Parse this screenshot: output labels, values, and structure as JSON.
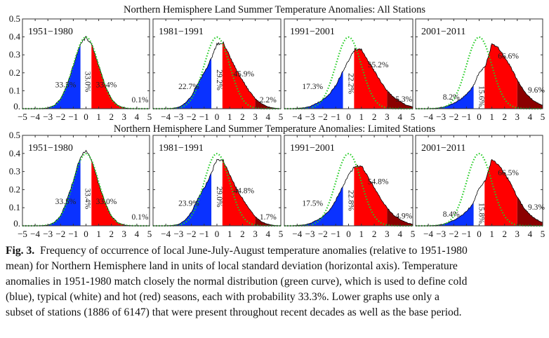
{
  "chart_data": [
    {
      "type": "area",
      "title": "Northern Hemisphere Land Summer Temperature Anomalies: All Stations",
      "xlim": [
        -5,
        5
      ],
      "ylim": [
        0,
        0.5
      ],
      "xticks": [
        "−5",
        "−4",
        "−3",
        "−2",
        "−1",
        "0",
        "1",
        "2",
        "3",
        "4",
        "5"
      ],
      "yticks": [
        "0.5",
        "0.4",
        "0.3",
        "0.2",
        "0.1",
        "0."
      ],
      "x": [
        -5,
        -4.5,
        -4,
        -3.5,
        -3,
        -2.5,
        -2,
        -1.5,
        -1,
        -0.5,
        0,
        0.5,
        1,
        1.5,
        2,
        2.5,
        3,
        3.5,
        4,
        4.5,
        5
      ],
      "reference_curve": "normal distribution (green dotted)",
      "colors": {
        "cold": "#0a32ff",
        "typical": "#ffffff",
        "hot": "#ff0000",
        "extreme": "#8b0000",
        "normal": "#22cc22"
      },
      "panels": [
        {
          "period": "1951−1980",
          "cold": "33.5%",
          "typical": "33.0%",
          "hot": "33.4%",
          "extreme": "0.1%",
          "density": [
            0,
            0,
            0,
            0.001,
            0.004,
            0.018,
            0.054,
            0.13,
            0.24,
            0.35,
            0.4,
            0.35,
            0.24,
            0.13,
            0.054,
            0.018,
            0.004,
            0.001,
            0,
            0,
            0
          ]
        },
        {
          "period": "1981−1991",
          "cold": "22.7%",
          "typical": "29.2%",
          "hot": "45.9%",
          "extreme": "2.2%",
          "density": [
            0,
            0,
            0,
            0.002,
            0.008,
            0.03,
            0.07,
            0.14,
            0.2,
            0.27,
            0.36,
            0.37,
            0.29,
            0.22,
            0.16,
            0.1,
            0.055,
            0.027,
            0.01,
            0.003,
            0
          ]
        },
        {
          "period": "1991−2001",
          "cold": "17.3%",
          "typical": "22.2%",
          "hot": "55.2%",
          "extreme": "5.3%",
          "density": [
            0,
            0,
            0.002,
            0.005,
            0.012,
            0.03,
            0.05,
            0.08,
            0.13,
            0.2,
            0.27,
            0.33,
            0.33,
            0.27,
            0.21,
            0.15,
            0.1,
            0.065,
            0.04,
            0.02,
            0.01
          ]
        },
        {
          "period": "2001−2011",
          "cold": "8.2%",
          "typical": "15.6%",
          "hot": "66.6%",
          "extreme": "9.6%",
          "density": [
            0,
            0,
            0,
            0.002,
            0.006,
            0.015,
            0.03,
            0.05,
            0.08,
            0.12,
            0.2,
            0.24,
            0.36,
            0.34,
            0.29,
            0.23,
            0.16,
            0.1,
            0.06,
            0.035,
            0.018
          ]
        }
      ]
    },
    {
      "type": "area",
      "title": "Northern Hemisphere Land Summer Temperature Anomalies: Limited Stations",
      "xlim": [
        -5,
        5
      ],
      "ylim": [
        0,
        0.5
      ],
      "xticks": [
        "−5",
        "−4",
        "−3",
        "−2",
        "−1",
        "0",
        "1",
        "2",
        "3",
        "4",
        "5"
      ],
      "yticks": [
        "0.5",
        "0.4",
        "0.3",
        "0.2",
        "0.1",
        "0."
      ],
      "x": [
        -5,
        -4.5,
        -4,
        -3.5,
        -3,
        -2.5,
        -2,
        -1.5,
        -1,
        -0.5,
        0,
        0.5,
        1,
        1.5,
        2,
        2.5,
        3,
        3.5,
        4,
        4.5,
        5
      ],
      "reference_curve": "normal distribution (green dotted)",
      "colors": {
        "cold": "#0a32ff",
        "typical": "#ffffff",
        "hot": "#ff0000",
        "extreme": "#8b0000",
        "normal": "#22cc22"
      },
      "panels": [
        {
          "period": "1951−1980",
          "cold": "33.5%",
          "typical": "33.4%",
          "hot": "33.0%",
          "extreme": "0.1%",
          "density": [
            0,
            0,
            0,
            0.001,
            0.004,
            0.018,
            0.055,
            0.14,
            0.25,
            0.37,
            0.42,
            0.35,
            0.23,
            0.13,
            0.053,
            0.017,
            0.004,
            0.001,
            0,
            0,
            0
          ]
        },
        {
          "period": "1981−1991",
          "cold": "23.9%",
          "typical": "29.0%",
          "hot": "44.8%",
          "extreme": "1.7%",
          "density": [
            0,
            0,
            0,
            0.002,
            0.008,
            0.03,
            0.075,
            0.15,
            0.21,
            0.28,
            0.37,
            0.36,
            0.28,
            0.21,
            0.15,
            0.095,
            0.05,
            0.022,
            0.008,
            0.002,
            0
          ]
        },
        {
          "period": "1991−2001",
          "cold": "17.5%",
          "typical": "22.8%",
          "hot": "54.8%",
          "extreme": "4.9%",
          "density": [
            0,
            0,
            0.002,
            0.005,
            0.012,
            0.03,
            0.05,
            0.085,
            0.14,
            0.21,
            0.28,
            0.33,
            0.33,
            0.27,
            0.21,
            0.15,
            0.1,
            0.06,
            0.035,
            0.018,
            0.008
          ]
        },
        {
          "period": "2001−2011",
          "cold": "8.4%",
          "typical": "15.8%",
          "hot": "66.5%",
          "extreme": "9.3%",
          "density": [
            0,
            0,
            0,
            0.002,
            0.006,
            0.015,
            0.03,
            0.05,
            0.08,
            0.12,
            0.21,
            0.25,
            0.37,
            0.34,
            0.29,
            0.23,
            0.16,
            0.1,
            0.06,
            0.035,
            0.018
          ]
        }
      ]
    }
  ],
  "caption": {
    "label": "Fig. 3.",
    "lines": [
      "Frequency of occurrence of local June-July-August temperature anomalies (relative to 1951-1980",
      "mean) for Northern Hemisphere land in units of local standard deviation (horizontal axis).  Temperature",
      "anomalies in 1951-1980 match closely the normal distribution (green curve), which is used to define cold",
      "(blue), typical (white) and hot (red) seasons, each with probability 33.3%.  Lower graphs use only a",
      "subset of stations (1886 of 6147) that were present throughout recent decades as well as the base period."
    ]
  }
}
